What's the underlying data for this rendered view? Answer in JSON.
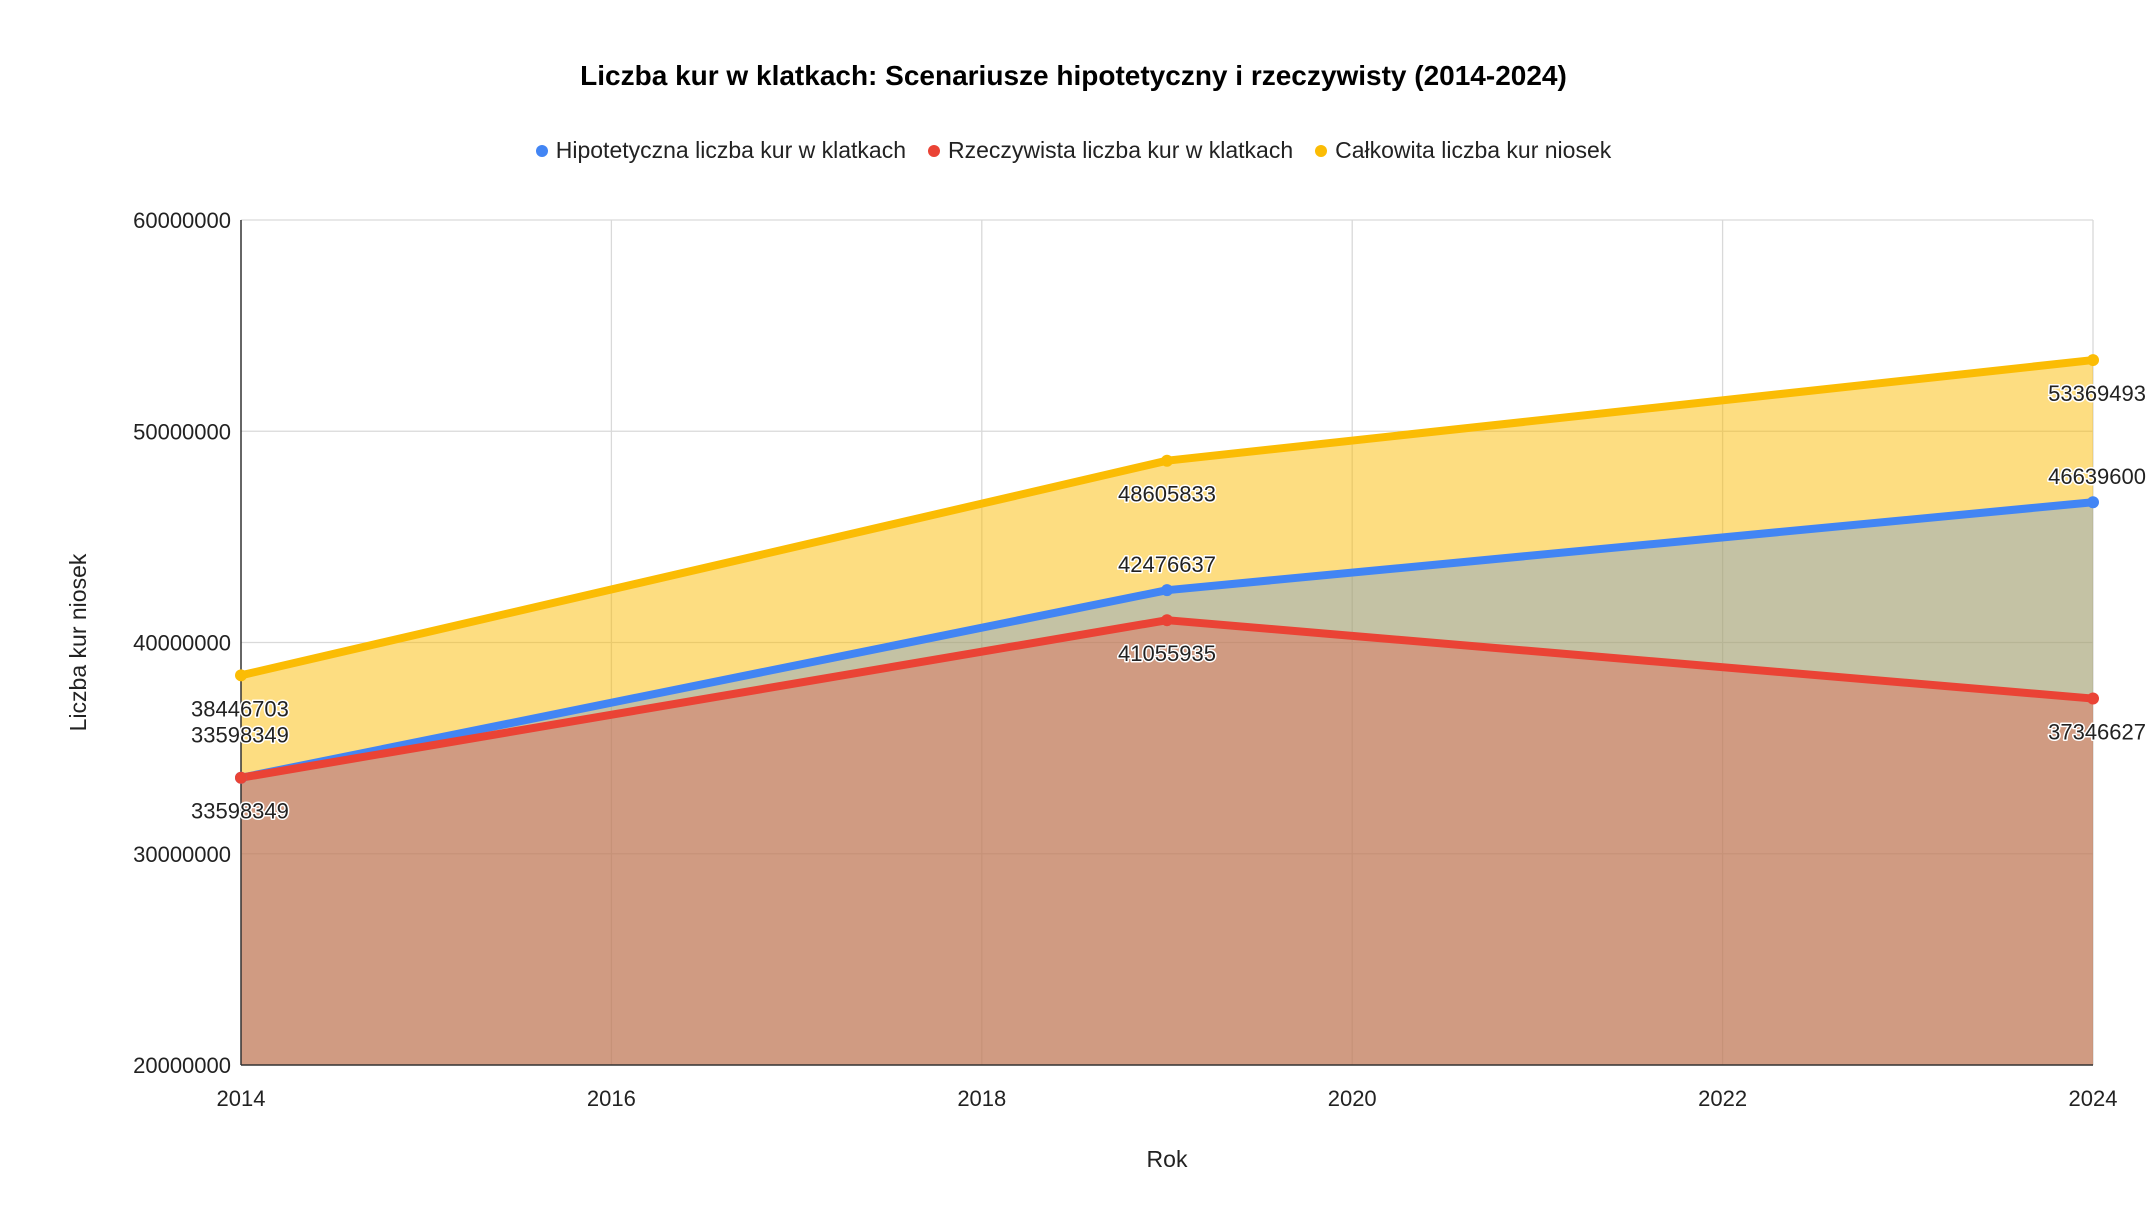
{
  "chart_data": {
    "type": "area",
    "title": "Liczba kur w klatkach: Scenariusze hipotetyczny i rzeczywisty (2014-2024)",
    "xlabel": "Rok",
    "ylabel": "Liczba kur niosek",
    "xlim": [
      2014,
      2024
    ],
    "ylim": [
      20000000,
      60000000
    ],
    "x_ticks": [
      2014,
      2016,
      2018,
      2020,
      2022,
      2024
    ],
    "y_ticks": [
      20000000,
      30000000,
      40000000,
      50000000,
      60000000
    ],
    "x_tick_labels": [
      "2014",
      "2016",
      "2018",
      "2020",
      "2022",
      "2024"
    ],
    "y_tick_labels": [
      "20000000",
      "30000000",
      "40000000",
      "50000000",
      "60000000"
    ],
    "grid": true,
    "legend_position": "top",
    "x": [
      2014,
      2019,
      2024
    ],
    "series": [
      {
        "name": "Hipotetyczna liczba kur w klatkach",
        "color": "#4285f4",
        "values": [
          33598349,
          42476637,
          46639600
        ],
        "labels": [
          "33598349",
          "42476637",
          "46639600"
        ]
      },
      {
        "name": "Rzeczywista liczba kur w klatkach",
        "color": "#ea4335",
        "values": [
          33598349,
          41055935,
          37346627
        ],
        "labels": [
          "33598349",
          "41055935",
          "37346627"
        ]
      },
      {
        "name": "Całkowita liczba kur niosek",
        "color": "#fbbc04",
        "values": [
          38446703,
          48605833,
          53369493
        ],
        "labels": [
          "38446703",
          "48605833",
          "53369493"
        ]
      }
    ]
  }
}
